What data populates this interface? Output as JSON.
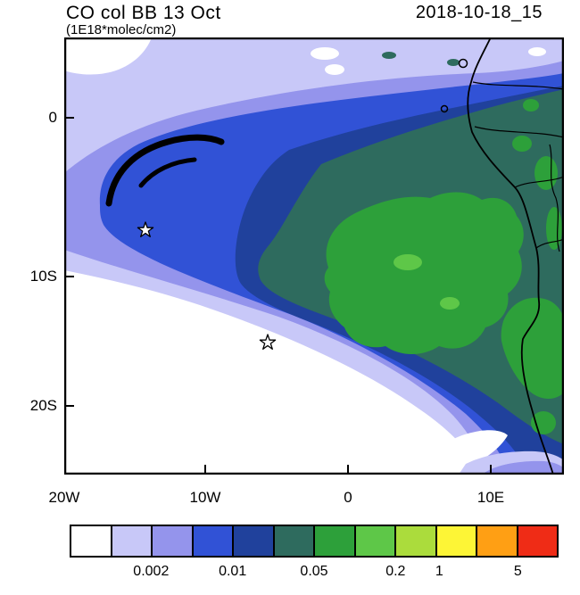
{
  "header": {
    "title": "CO col BB 13 Oct",
    "subtitle": "(1E18*molec/cm2)",
    "timestamp": "2018-10-18_15"
  },
  "axes": {
    "y_ticks": [
      "0",
      "10S",
      "20S"
    ],
    "x_ticks": [
      "20W",
      "10W",
      "0",
      "10E"
    ]
  },
  "colorbar": {
    "cell_colors": [
      "#ffffff",
      "#c8c8f8",
      "#9494ec",
      "#3152d6",
      "#20419c",
      "#2e6b5e",
      "#2da03a",
      "#5ec748",
      "#abdc3c",
      "#fdf536",
      "#ff9f14",
      "#ef2c16"
    ],
    "tick_labels": [
      "0.002",
      "0.01",
      "0.05",
      "0.2",
      "1",
      "5"
    ]
  },
  "chart_data": {
    "type": "heatmap",
    "subtype": "filled-contour-map",
    "title": "CO col BB 13 Oct",
    "units": "1E18*molec/cm2",
    "valid_time": "2018-10-18_15",
    "lon_range": [
      -20,
      15
    ],
    "lat_range": [
      -24.6,
      6
    ],
    "x_tick_labels": [
      "20W",
      "10W",
      "0",
      "10E"
    ],
    "y_tick_labels": [
      "0",
      "10S",
      "20S"
    ],
    "contour_levels": [
      0.001,
      0.002,
      0.005,
      0.01,
      0.02,
      0.05,
      0.1,
      0.2,
      1,
      2,
      5
    ],
    "labeled_levels": [
      "0.002",
      "0.01",
      "0.05",
      "0.2",
      "1",
      "5"
    ],
    "palette": [
      "#ffffff",
      "#c8c8f8",
      "#9494ec",
      "#3152d6",
      "#20419c",
      "#2e6b5e",
      "#2da03a",
      "#5ec748",
      "#abdc3c",
      "#fdf536",
      "#ff9f14",
      "#ef2c16"
    ],
    "legend_position": "bottom horizontal colorbar",
    "grid": "off",
    "markers": [
      {
        "symbol": "open-star",
        "lon": -14.2,
        "lat": -7.5
      },
      {
        "symbol": "open-star",
        "lon": -5.6,
        "lat": -15.4
      }
    ],
    "map_features": "West-central African coastline (Gulf of Guinea to ~24S), country borders, two small offshore islands",
    "description": "Biomass-burning CO column plume spreading from the African coast (Congo/Angola) westward over the SE Atlantic; core values ~0.1 (green) embedded in 0.05-0.1 dark teal region, ringed by 0.02 (navy), 0.01 (blue), 0.005 (periwinkle) and 0.002 (lavender) bands; values fall below 0.001 (white) in the southwest quadrant; cyclonic hook feature near 14W,4S; thin plume filament reaching the bottom-right corner near the Namibian coast."
  }
}
